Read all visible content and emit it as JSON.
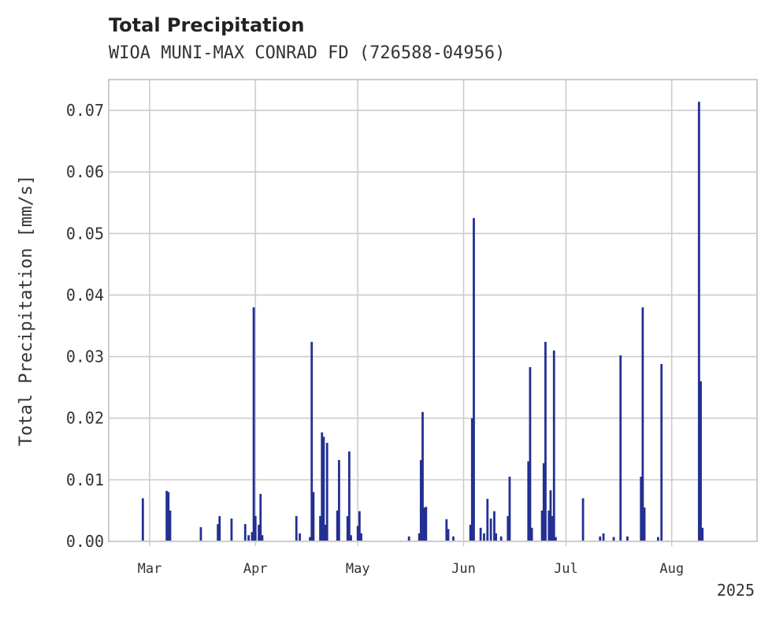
{
  "chart_data": {
    "type": "bar",
    "title": "Total Precipitation",
    "subtitle": "WIOA MUNI-MAX CONRAD FD (726588-04956)",
    "xlabel": "",
    "ylabel": "Total Precipitation [mm/s]",
    "ylim": [
      0,
      0.075
    ],
    "yticks": [
      "0.00",
      "0.01",
      "0.02",
      "0.03",
      "0.04",
      "0.05",
      "0.06",
      "0.07"
    ],
    "xlim": [
      "2025-02-17",
      "2025-08-26"
    ],
    "xticks": [
      {
        "date": "2025-03-01",
        "label": "Mar"
      },
      {
        "date": "2025-04-01",
        "label": "Apr"
      },
      {
        "date": "2025-05-01",
        "label": "May"
      },
      {
        "date": "2025-06-01",
        "label": "Jun"
      },
      {
        "date": "2025-07-01",
        "label": "Jul"
      },
      {
        "date": "2025-08-01",
        "label": "Aug"
      }
    ],
    "year_label": "2025",
    "grid": true,
    "color": "#233091",
    "points": [
      {
        "x": "2025-02-27",
        "y": 0.007
      },
      {
        "x": "2025-03-06",
        "y": 0.0082
      },
      {
        "x": "2025-03-06T12:00",
        "y": 0.008
      },
      {
        "x": "2025-03-07",
        "y": 0.005
      },
      {
        "x": "2025-03-16",
        "y": 0.0023
      },
      {
        "x": "2025-03-21",
        "y": 0.0028
      },
      {
        "x": "2025-03-21T12:00",
        "y": 0.0041
      },
      {
        "x": "2025-03-25",
        "y": 0.0037
      },
      {
        "x": "2025-03-29",
        "y": 0.0028
      },
      {
        "x": "2025-03-30",
        "y": 0.001
      },
      {
        "x": "2025-03-31",
        "y": 0.0015
      },
      {
        "x": "2025-03-31T12:00",
        "y": 0.038
      },
      {
        "x": "2025-04-01",
        "y": 0.0041
      },
      {
        "x": "2025-04-02",
        "y": 0.0027
      },
      {
        "x": "2025-04-02T12:00",
        "y": 0.0077
      },
      {
        "x": "2025-04-03",
        "y": 0.001
      },
      {
        "x": "2025-04-13",
        "y": 0.0041
      },
      {
        "x": "2025-04-14",
        "y": 0.0013
      },
      {
        "x": "2025-04-17",
        "y": 0.0007
      },
      {
        "x": "2025-04-17T12:00",
        "y": 0.0324
      },
      {
        "x": "2025-04-18",
        "y": 0.008
      },
      {
        "x": "2025-04-20",
        "y": 0.0041
      },
      {
        "x": "2025-04-20T12:00",
        "y": 0.0177
      },
      {
        "x": "2025-04-21",
        "y": 0.017
      },
      {
        "x": "2025-04-21T12:00",
        "y": 0.0027
      },
      {
        "x": "2025-04-22",
        "y": 0.016
      },
      {
        "x": "2025-04-25",
        "y": 0.005
      },
      {
        "x": "2025-04-25T12:00",
        "y": 0.0132
      },
      {
        "x": "2025-04-28",
        "y": 0.0041
      },
      {
        "x": "2025-04-28T12:00",
        "y": 0.0146
      },
      {
        "x": "2025-04-29",
        "y": 0.001
      },
      {
        "x": "2025-05-01",
        "y": 0.0025
      },
      {
        "x": "2025-05-01T12:00",
        "y": 0.0049
      },
      {
        "x": "2025-05-02",
        "y": 0.0013
      },
      {
        "x": "2025-05-16",
        "y": 0.0008
      },
      {
        "x": "2025-05-19",
        "y": 0.0013
      },
      {
        "x": "2025-05-19T12:00",
        "y": 0.0132
      },
      {
        "x": "2025-05-20",
        "y": 0.021
      },
      {
        "x": "2025-05-20T12:00",
        "y": 0.0055
      },
      {
        "x": "2025-05-21",
        "y": 0.0056
      },
      {
        "x": "2025-05-27",
        "y": 0.0036
      },
      {
        "x": "2025-05-27T12:00",
        "y": 0.002
      },
      {
        "x": "2025-05-29",
        "y": 0.0008
      },
      {
        "x": "2025-06-03",
        "y": 0.0027
      },
      {
        "x": "2025-06-03T12:00",
        "y": 0.02
      },
      {
        "x": "2025-06-04",
        "y": 0.0525
      },
      {
        "x": "2025-06-06",
        "y": 0.0022
      },
      {
        "x": "2025-06-07",
        "y": 0.0013
      },
      {
        "x": "2025-06-08",
        "y": 0.0069
      },
      {
        "x": "2025-06-09",
        "y": 0.0037
      },
      {
        "x": "2025-06-10",
        "y": 0.0049
      },
      {
        "x": "2025-06-10T12:00",
        "y": 0.0013
      },
      {
        "x": "2025-06-12",
        "y": 0.0008
      },
      {
        "x": "2025-06-14",
        "y": 0.0041
      },
      {
        "x": "2025-06-14T12:00",
        "y": 0.0105
      },
      {
        "x": "2025-06-20",
        "y": 0.013
      },
      {
        "x": "2025-06-20T12:00",
        "y": 0.0283
      },
      {
        "x": "2025-06-21",
        "y": 0.0022
      },
      {
        "x": "2025-06-24",
        "y": 0.005
      },
      {
        "x": "2025-06-24T12:00",
        "y": 0.0127
      },
      {
        "x": "2025-06-25",
        "y": 0.0324
      },
      {
        "x": "2025-06-26",
        "y": 0.005
      },
      {
        "x": "2025-06-26T12:00",
        "y": 0.0083
      },
      {
        "x": "2025-06-27",
        "y": 0.0041
      },
      {
        "x": "2025-06-27T12:00",
        "y": 0.031
      },
      {
        "x": "2025-06-28",
        "y": 0.0007
      },
      {
        "x": "2025-07-06",
        "y": 0.007
      },
      {
        "x": "2025-07-11",
        "y": 0.0008
      },
      {
        "x": "2025-07-12",
        "y": 0.0013
      },
      {
        "x": "2025-07-15",
        "y": 0.0007
      },
      {
        "x": "2025-07-17",
        "y": 0.0302
      },
      {
        "x": "2025-07-19",
        "y": 0.0008
      },
      {
        "x": "2025-07-23",
        "y": 0.0105
      },
      {
        "x": "2025-07-23T12:00",
        "y": 0.038
      },
      {
        "x": "2025-07-24",
        "y": 0.0055
      },
      {
        "x": "2025-07-28",
        "y": 0.0007
      },
      {
        "x": "2025-07-29",
        "y": 0.0288
      },
      {
        "x": "2025-08-09",
        "y": 0.0714
      },
      {
        "x": "2025-08-09T12:00",
        "y": 0.026
      },
      {
        "x": "2025-08-10",
        "y": 0.0022
      }
    ]
  }
}
